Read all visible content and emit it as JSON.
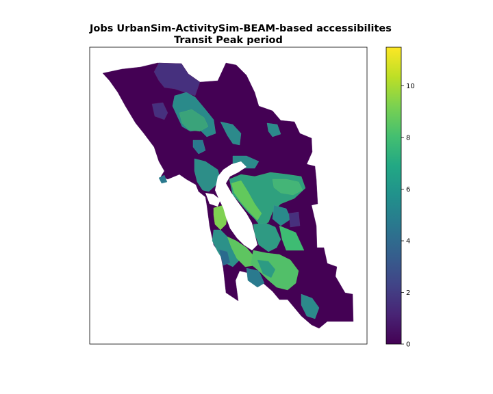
{
  "title": {
    "line1": "Jobs UrbanSim-ActivitySim-BEAM-based accessibilites",
    "line2": "Transit Peak period"
  },
  "colorbar": {
    "colormap": "viridis",
    "min": 0,
    "max": 11.5,
    "ticks": [
      "0",
      "2",
      "4",
      "6",
      "8",
      "10"
    ]
  },
  "colors": {
    "background": "#440154",
    "low": "#46307e",
    "mid_low": "#31688e",
    "mid": "#21908d",
    "mid_high": "#35b779",
    "high": "#90d743",
    "max": "#fde725"
  }
}
